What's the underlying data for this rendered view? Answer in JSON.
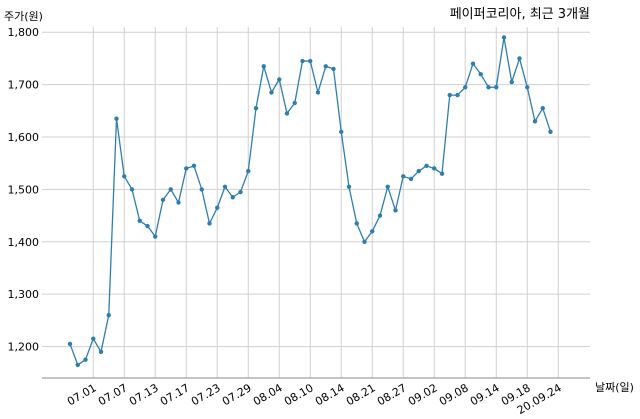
{
  "chart_data": {
    "type": "line",
    "title": "페이퍼코리아, 최근 3개월",
    "ylabel": "주가(원)",
    "xlabel": "날짜(일)",
    "ylim": [
      1140,
      1810
    ],
    "yticks": [
      1200,
      1300,
      1400,
      1500,
      1600,
      1700,
      1800
    ],
    "ytick_labels": [
      "1,200",
      "1,300",
      "1,400",
      "1,500",
      "1,600",
      "1,700",
      "1,800"
    ],
    "xtick_labels": [
      "07.01",
      "07.07",
      "07.13",
      "07.17",
      "07.23",
      "07.29",
      "08.04",
      "08.10",
      "08.14",
      "08.21",
      "08.27",
      "09.02",
      "09.08",
      "09.14",
      "09.18",
      "20.09.24"
    ],
    "xtick_indices": [
      3,
      7,
      11,
      15,
      19,
      23,
      27,
      31,
      35,
      39,
      43,
      47,
      51,
      55,
      59,
      63
    ],
    "grid": true,
    "series": [
      {
        "color": "#2e7eb0",
        "values": [
          1205,
          1165,
          1175,
          1215,
          1190,
          1260,
          1635,
          1525,
          1500,
          1440,
          1430,
          1410,
          1480,
          1500,
          1475,
          1540,
          1545,
          1500,
          1435,
          1465,
          1505,
          1485,
          1495,
          1535,
          1655,
          1735,
          1685,
          1710,
          1645,
          1665,
          1745,
          1745,
          1685,
          1735,
          1730,
          1610,
          1505,
          1435,
          1400,
          1420,
          1450,
          1505,
          1460,
          1525,
          1520,
          1535,
          1545,
          1540,
          1530,
          1680,
          1680,
          1695,
          1740,
          1720,
          1695,
          1695,
          1790,
          1705,
          1750,
          1695,
          1630,
          1655,
          1610
        ]
      }
    ]
  }
}
